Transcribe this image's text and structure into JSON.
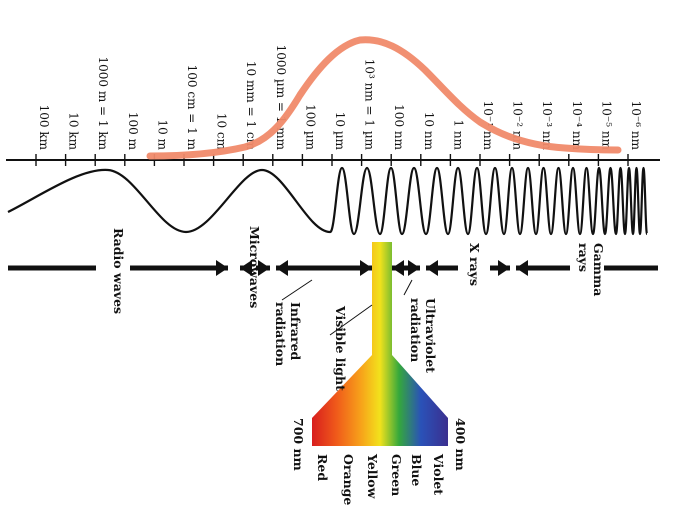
{
  "scale": {
    "labels": [
      "100 km",
      "10 km",
      "1000 m = 1 km",
      "100 m",
      "10 m",
      "100 cm = 1 m",
      "10 cm",
      "10 mm = 1 cm",
      "1000 µm = 1 mm",
      "100 µm",
      "10 µm",
      "10³ nm = 1 µm",
      "100 nm",
      "10 nm",
      "1 nm",
      "10⁻¹ nm",
      "10⁻² nm",
      "10⁻³ nm",
      "10⁻⁴ nm",
      "10⁻⁵ nm",
      "10⁻⁶ nm"
    ]
  },
  "bands": {
    "radio": "Radio waves",
    "microwaves": "Microwaves",
    "infrared_1": "Infrared",
    "infrared_2": "radiation",
    "visible": "Visible light",
    "ultraviolet_1": "Ultraviolet",
    "ultraviolet_2": "radiation",
    "xrays": "X rays",
    "gamma_1": "Gamma",
    "gamma_2": "rays"
  },
  "visible_spectrum": {
    "long_end": "700 nm",
    "short_end": "400 nm",
    "colors": [
      "Red",
      "Orange",
      "Yellow",
      "Green",
      "Blue",
      "Violet"
    ]
  },
  "palette": {
    "curve": "#f08a6a",
    "line": "#111111"
  }
}
